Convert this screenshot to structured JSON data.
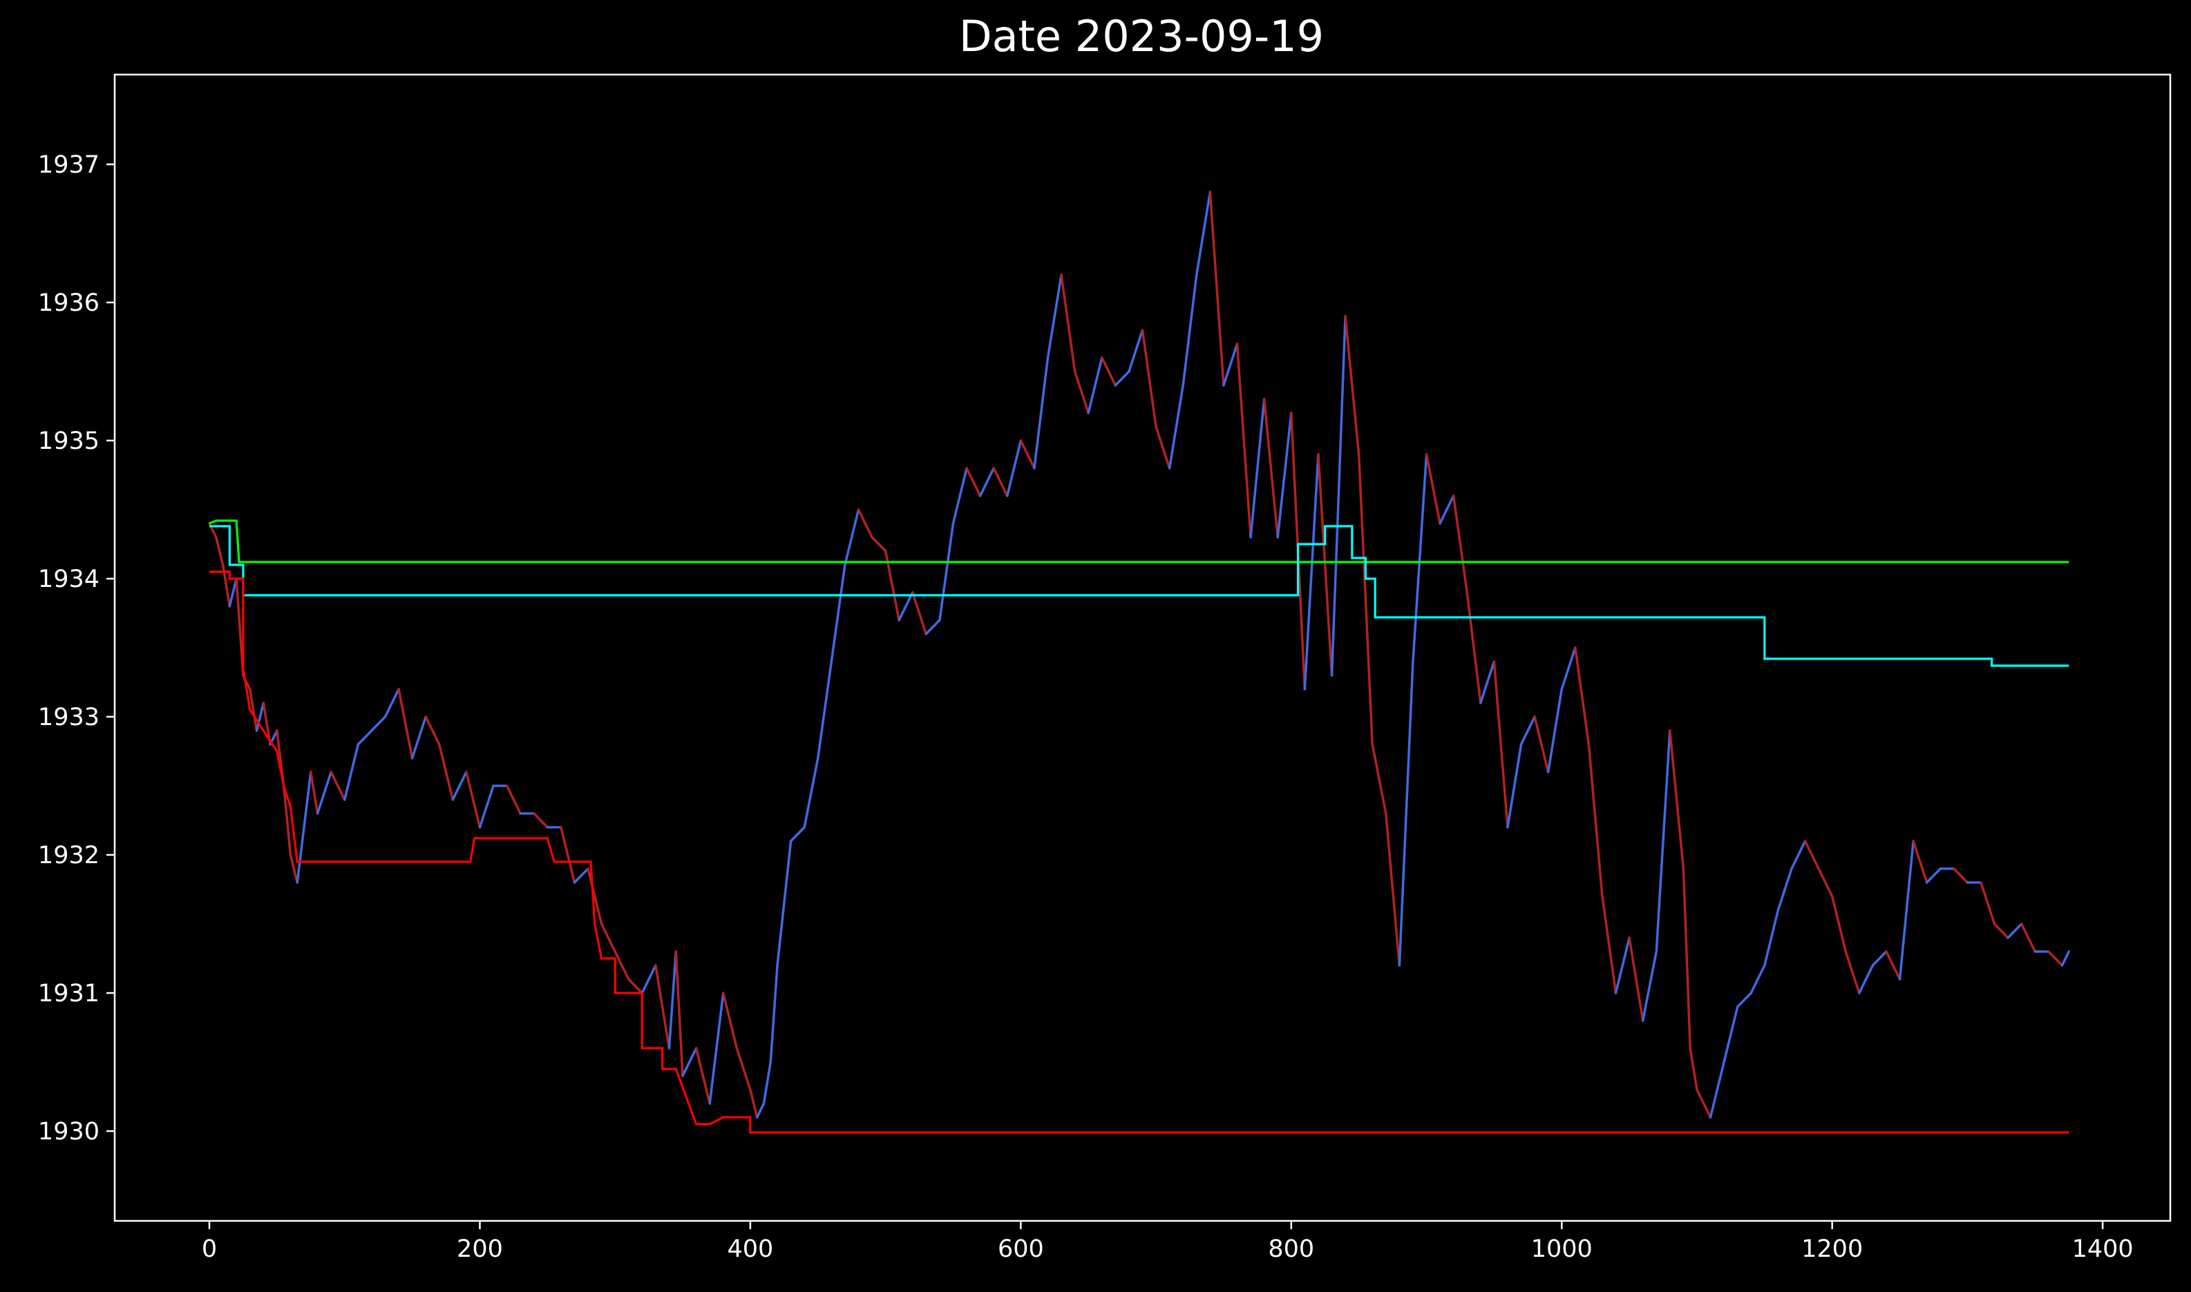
{
  "chart_data": {
    "type": "line",
    "title": "Date 2023-09-19",
    "xlabel": "",
    "ylabel": "",
    "xlim": [
      -70,
      1450
    ],
    "ylim": [
      1929.35,
      1937.65
    ],
    "xticks": [
      0,
      200,
      400,
      600,
      800,
      1000,
      1200,
      1400
    ],
    "yticks": [
      1930,
      1931,
      1932,
      1933,
      1934,
      1935,
      1936,
      1937
    ],
    "grid": false,
    "legend": "none",
    "background": "#000000",
    "colors": {
      "price_up": "#4169e1",
      "price_down": "#b22222",
      "green_level": "#00ff00",
      "cyan_level": "#00ffff",
      "red_level": "#ff0000"
    },
    "series": [
      {
        "kind": "price",
        "x": [
          0,
          5,
          10,
          15,
          20,
          25,
          30,
          35,
          40,
          45,
          50,
          55,
          60,
          65,
          70,
          75,
          80,
          90,
          100,
          110,
          120,
          130,
          140,
          150,
          160,
          170,
          180,
          190,
          200,
          210,
          220,
          230,
          240,
          250,
          260,
          270,
          280,
          290,
          300,
          310,
          320,
          330,
          340,
          345,
          350,
          360,
          370,
          380,
          390,
          400,
          405,
          410,
          415,
          420,
          430,
          440,
          450,
          460,
          470,
          480,
          490,
          500,
          510,
          520,
          530,
          540,
          550,
          560,
          570,
          580,
          590,
          600,
          610,
          620,
          630,
          640,
          650,
          660,
          670,
          680,
          690,
          700,
          710,
          720,
          730,
          740,
          750,
          760,
          770,
          780,
          790,
          800,
          810,
          820,
          830,
          840,
          850,
          860,
          870,
          880,
          890,
          900,
          910,
          920,
          930,
          940,
          950,
          960,
          970,
          980,
          990,
          1000,
          1010,
          1020,
          1030,
          1040,
          1050,
          1060,
          1070,
          1080,
          1090,
          1095,
          1100,
          1110,
          1120,
          1130,
          1140,
          1150,
          1160,
          1170,
          1180,
          1190,
          1200,
          1210,
          1220,
          1230,
          1240,
          1250,
          1260,
          1270,
          1280,
          1290,
          1300,
          1310,
          1320,
          1330,
          1340,
          1350,
          1360,
          1370,
          1375
        ],
        "y": [
          1934.4,
          1934.3,
          1934.1,
          1933.8,
          1934.0,
          1933.3,
          1933.2,
          1932.9,
          1933.1,
          1932.8,
          1932.9,
          1932.5,
          1932.0,
          1931.8,
          1932.2,
          1932.6,
          1932.3,
          1932.6,
          1932.4,
          1932.8,
          1932.9,
          1933.0,
          1933.2,
          1932.7,
          1933.0,
          1932.8,
          1932.4,
          1932.6,
          1932.2,
          1932.5,
          1932.5,
          1932.3,
          1932.3,
          1932.2,
          1932.2,
          1931.8,
          1931.9,
          1931.5,
          1931.3,
          1931.1,
          1931.0,
          1931.2,
          1930.6,
          1931.3,
          1930.4,
          1930.6,
          1930.2,
          1931.0,
          1930.6,
          1930.3,
          1930.1,
          1930.2,
          1930.5,
          1931.2,
          1932.1,
          1932.2,
          1932.7,
          1933.4,
          1934.1,
          1934.5,
          1934.3,
          1934.2,
          1933.7,
          1933.9,
          1933.6,
          1933.7,
          1934.4,
          1934.8,
          1934.6,
          1934.8,
          1934.6,
          1935.0,
          1934.8,
          1935.6,
          1936.2,
          1935.5,
          1935.2,
          1935.6,
          1935.4,
          1935.5,
          1935.8,
          1935.1,
          1934.8,
          1935.4,
          1936.2,
          1936.8,
          1935.4,
          1935.7,
          1934.3,
          1935.3,
          1934.3,
          1935.2,
          1933.2,
          1934.9,
          1933.3,
          1935.9,
          1934.9,
          1932.8,
          1932.3,
          1931.2,
          1933.4,
          1934.9,
          1934.4,
          1934.6,
          1933.9,
          1933.1,
          1933.4,
          1932.2,
          1932.8,
          1933.0,
          1932.6,
          1933.2,
          1933.5,
          1932.8,
          1931.7,
          1931.0,
          1931.4,
          1930.8,
          1931.3,
          1932.9,
          1931.9,
          1930.6,
          1930.3,
          1930.1,
          1930.5,
          1930.9,
          1931.0,
          1931.2,
          1931.6,
          1931.9,
          1932.1,
          1931.9,
          1931.7,
          1931.3,
          1931.0,
          1931.2,
          1931.3,
          1931.1,
          1932.1,
          1931.8,
          1931.9,
          1931.9,
          1931.8,
          1931.8,
          1931.5,
          1931.4,
          1931.5,
          1931.3,
          1931.3,
          1931.2,
          1931.3
        ]
      },
      {
        "kind": "level",
        "color": "#00ff00",
        "x": [
          0,
          5,
          20,
          22,
          25,
          1375
        ],
        "y": [
          1934.4,
          1934.42,
          1934.42,
          1934.12,
          1934.12,
          1934.12
        ]
      },
      {
        "kind": "level",
        "color": "#00ffff",
        "x": [
          0,
          15,
          15,
          25,
          25,
          805,
          805,
          825,
          825,
          845,
          845,
          855,
          855,
          862,
          862,
          1150,
          1150,
          1318,
          1318,
          1375
        ],
        "y": [
          1934.38,
          1934.38,
          1934.1,
          1934.1,
          1933.88,
          1933.88,
          1934.25,
          1934.25,
          1934.38,
          1934.38,
          1934.15,
          1934.15,
          1934.0,
          1934.0,
          1933.72,
          1933.72,
          1933.42,
          1933.42,
          1933.37,
          1933.37
        ]
      },
      {
        "kind": "level",
        "color": "#ff0000",
        "x": [
          0,
          15,
          15,
          25,
          25,
          30,
          40,
          50,
          55,
          60,
          65,
          65,
          193,
          196,
          196,
          250,
          255,
          282,
          285,
          290,
          300,
          300,
          310,
          320,
          320,
          325,
          335,
          335,
          345,
          345,
          360,
          370,
          380,
          380,
          390,
          400,
          400,
          1375
        ],
        "y": [
          1934.05,
          1934.05,
          1934.0,
          1934.0,
          1933.35,
          1933.05,
          1932.9,
          1932.75,
          1932.5,
          1932.35,
          1931.95,
          1931.95,
          1931.95,
          1932.12,
          1932.12,
          1932.12,
          1931.95,
          1931.95,
          1931.5,
          1931.25,
          1931.25,
          1931.0,
          1931.0,
          1931.0,
          1930.6,
          1930.6,
          1930.6,
          1930.45,
          1930.45,
          1930.45,
          1930.05,
          1930.05,
          1930.1,
          1930.1,
          1930.1,
          1930.1,
          1929.99,
          1929.99
        ]
      }
    ]
  }
}
